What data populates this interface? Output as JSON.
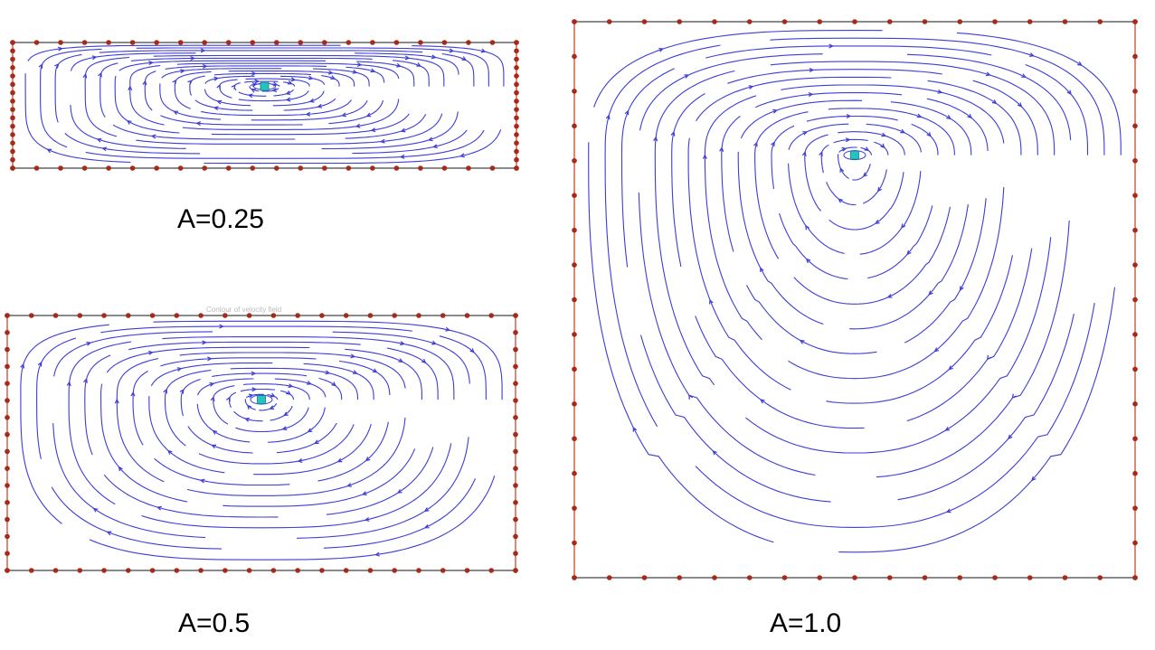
{
  "panels": [
    {
      "id": "a025",
      "caption": "A=0.25",
      "aspect_ratio": 0.25,
      "nodes_top": 22,
      "nodes_bottom": 22,
      "nodes_side": 16,
      "vortex_marker": "square",
      "direction": "clockwise"
    },
    {
      "id": "a05",
      "caption": "A=0.5",
      "aspect_ratio": 0.5,
      "nodes_top": 22,
      "nodes_bottom": 22,
      "nodes_side": 16,
      "vortex_marker": "square",
      "direction": "clockwise"
    },
    {
      "id": "a10",
      "caption": "A=1.0",
      "aspect_ratio": 1.0,
      "nodes_top": 17,
      "nodes_bottom": 17,
      "nodes_side": 17,
      "vortex_marker": "square",
      "direction": "clockwise"
    }
  ],
  "faint_title": "Contour of velocity field",
  "colors": {
    "streamline": "#3d3dd6",
    "wall_node": "#a52a1a",
    "wall_side": "#d0553d",
    "frame": "#444444",
    "vortex_center": "#25c2c2"
  }
}
